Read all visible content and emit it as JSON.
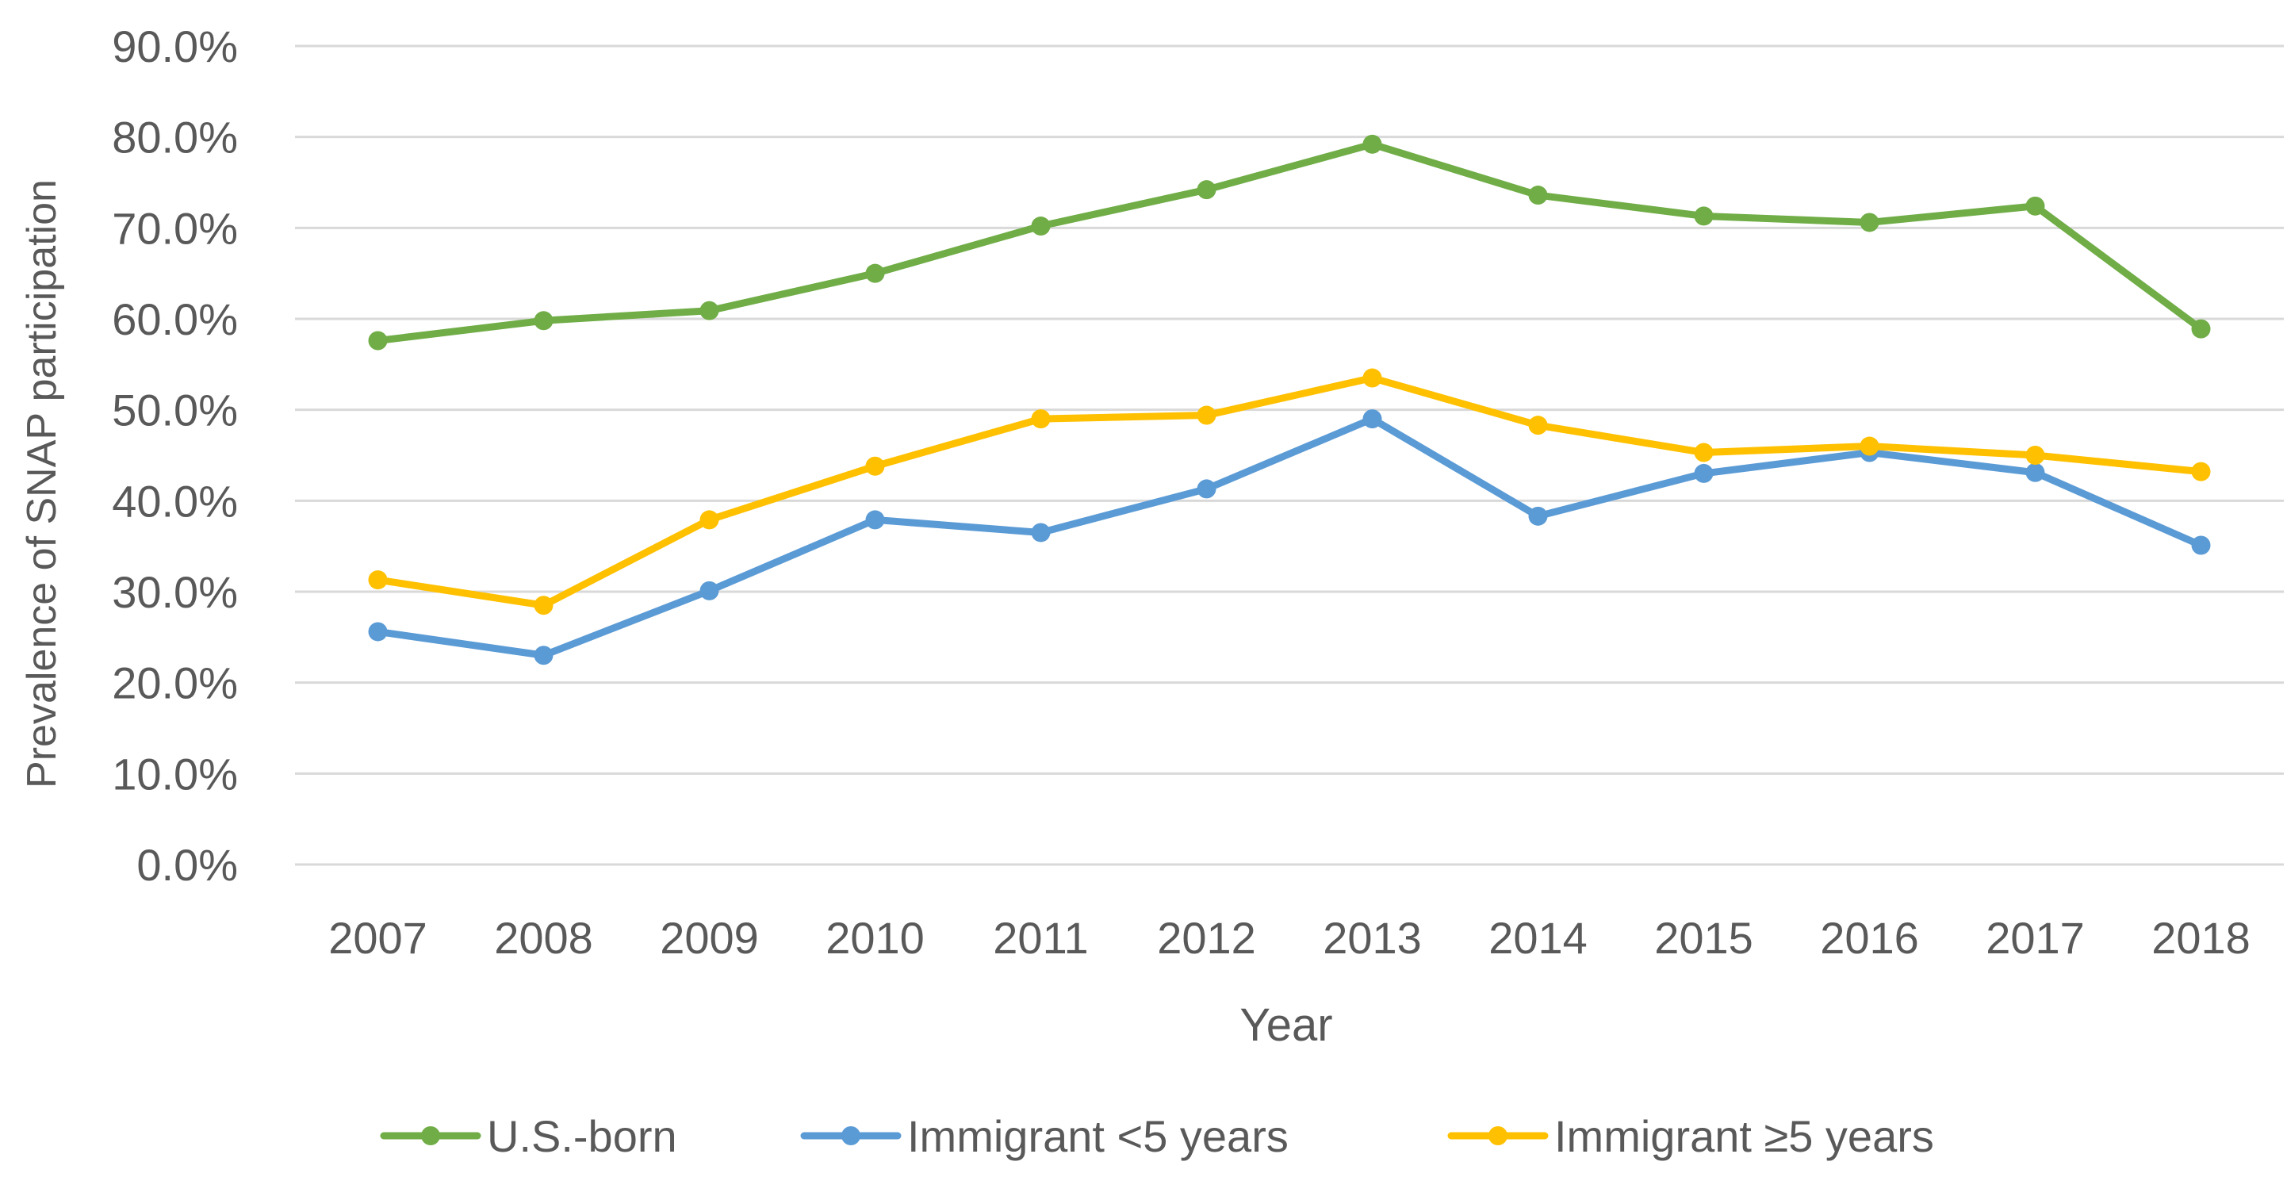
{
  "chart_data": {
    "type": "line",
    "title": "",
    "xlabel": "Year",
    "ylabel": "Prevalence of SNAP participation",
    "categories": [
      "2007",
      "2008",
      "2009",
      "2010",
      "2011",
      "2012",
      "2013",
      "2014",
      "2015",
      "2016",
      "2017",
      "2018"
    ],
    "ylim": [
      0,
      90
    ],
    "yticks": [
      "0.0%",
      "10.0%",
      "20.0%",
      "30.0%",
      "40.0%",
      "50.0%",
      "60.0%",
      "70.0%",
      "80.0%",
      "90.0%"
    ],
    "grid": true,
    "legend_position": "bottom",
    "series": [
      {
        "name": "U.S.-born",
        "color": "#70ad47",
        "values": [
          57.6,
          59.8,
          60.9,
          65.0,
          70.2,
          74.2,
          79.2,
          73.6,
          71.3,
          70.6,
          72.4,
          58.9
        ]
      },
      {
        "name": "Immigrant <5 years",
        "color": "#5b9bd5",
        "values": [
          25.6,
          23.0,
          30.1,
          37.9,
          36.5,
          41.3,
          49.0,
          38.3,
          43.0,
          45.3,
          43.1,
          35.1
        ]
      },
      {
        "name": "Immigrant ≥5 years",
        "color": "#ffc000",
        "values": [
          31.3,
          28.5,
          37.9,
          43.8,
          49.0,
          49.4,
          53.5,
          48.3,
          45.3,
          46.0,
          45.0,
          43.2
        ]
      }
    ]
  }
}
